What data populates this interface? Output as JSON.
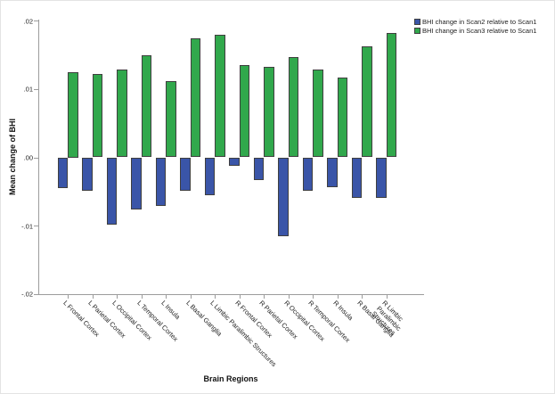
{
  "chart_data": {
    "type": "bar",
    "title": "",
    "xlabel": "Brain Regions",
    "ylabel": "Mean change of BHI",
    "ylim": [
      -0.02,
      0.02
    ],
    "ytick_labels": [
      ".02",
      ".01",
      ".00",
      "-.01",
      "-.02"
    ],
    "grid": false,
    "legend_position": "top-right",
    "categories": [
      "L Frontal Cortex",
      "L Parietal Cortex",
      "L Occipital Cortex",
      "L Temporal Cortex",
      "L Insula",
      "L Basal Ganglia",
      "L Limbic Paralimbic Structures",
      "R Frontal Cortex",
      "R Parietal Cortex",
      "R Occipital Cortex",
      "R Temporal Cortex",
      "R Insula",
      "R Basal Ganglia",
      "R Limbic\nParalimbic\nStructures"
    ],
    "series": [
      {
        "name": "BHI change in Scan2 relative to Scan1",
        "color": "#3A55A8",
        "values": [
          -0.0045,
          -0.0049,
          -0.0099,
          -0.0076,
          -0.0071,
          -0.0049,
          -0.0055,
          -0.0013,
          -0.0033,
          -0.0116,
          -0.0049,
          -0.0044,
          -0.006,
          -0.006
        ]
      },
      {
        "name": "BHI change in Scan3 relative to Scan1",
        "color": "#31A84C",
        "values": [
          0.0125,
          0.0122,
          0.0129,
          0.0149,
          0.0112,
          0.0174,
          0.018,
          0.0135,
          0.0133,
          0.0147,
          0.0128,
          0.0117,
          0.0162,
          0.0182
        ]
      }
    ],
    "bar_outline_color": "#3f3f3f",
    "axis_color": "#9c9c9c"
  }
}
